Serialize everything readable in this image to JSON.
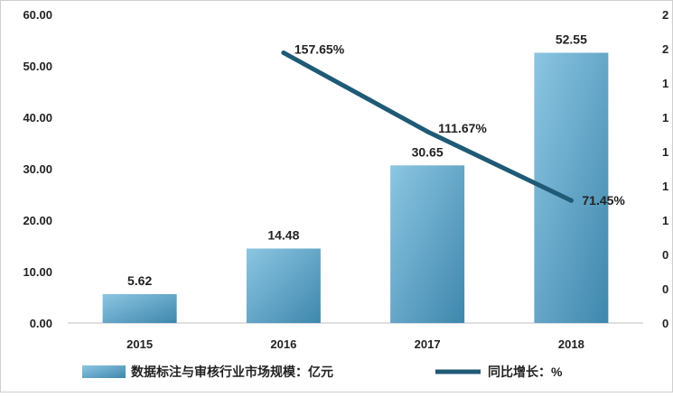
{
  "chart_data": {
    "type": "bar",
    "categories": [
      "2015",
      "2016",
      "2017",
      "2018"
    ],
    "series": [
      {
        "name": "数据标注与审核行业市场规模：亿元",
        "type": "bar",
        "axis": "left",
        "values": [
          5.62,
          14.48,
          30.65,
          52.55
        ],
        "labels": [
          "5.62",
          "14.48",
          "30.65",
          "52.55"
        ]
      },
      {
        "name": "同比增长：%",
        "type": "line",
        "axis": "right",
        "values": [
          null,
          157.65,
          111.67,
          71.45
        ],
        "labels": [
          "",
          "157.65%",
          "111.67%",
          "71.45%"
        ]
      }
    ],
    "y_left": {
      "ylim": [
        0,
        60
      ],
      "ticks": [
        0,
        10,
        20,
        30,
        40,
        50,
        60
      ],
      "tick_labels": [
        "0.00",
        "10.00",
        "20.00",
        "30.00",
        "40.00",
        "50.00",
        "60.00"
      ]
    },
    "y_right": {
      "ylim": [
        0,
        180
      ],
      "tick_labels": [
        "0",
        "0",
        "0",
        "1",
        "1",
        "1",
        "1",
        "1",
        "2",
        "2"
      ]
    },
    "title": "",
    "xlabel": "",
    "ylabel": "",
    "grid": false,
    "legend_position": "bottom",
    "colors": {
      "bar_light": "#8cc6e2",
      "bar_dark": "#3f87ad",
      "line": "#1f5a76",
      "text": "#222222",
      "axis": "#bfbfbf"
    }
  }
}
